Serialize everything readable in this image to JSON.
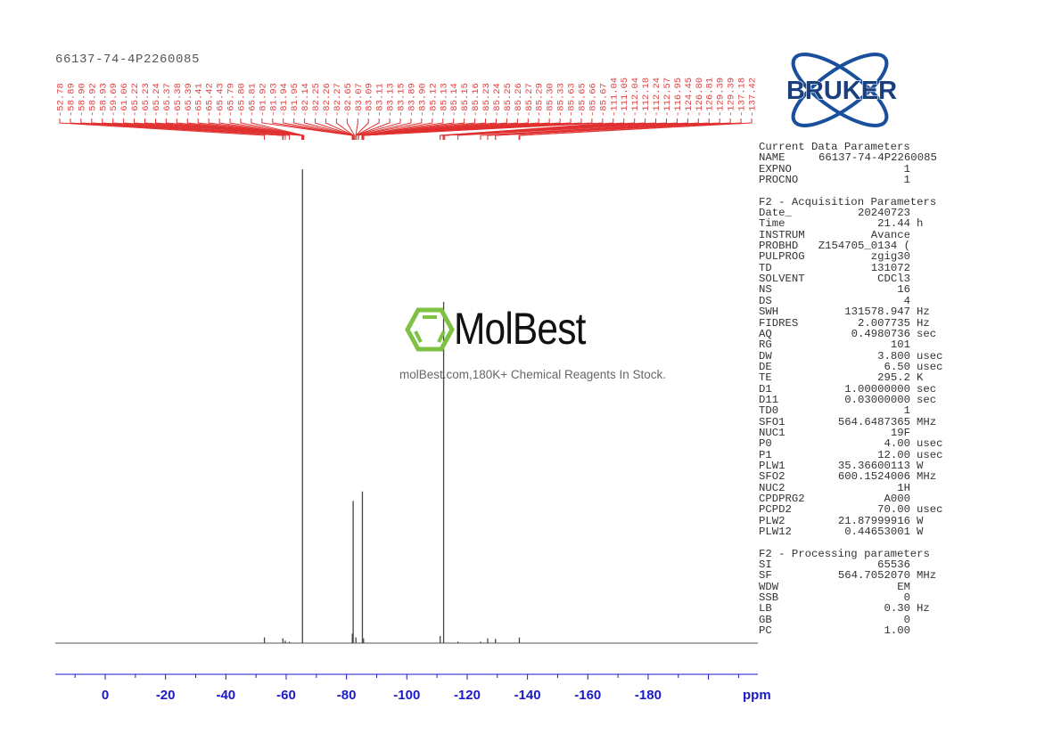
{
  "header": {
    "sample_name": "66137-74-4P2260085"
  },
  "logo": {
    "text": "BRUKER",
    "color": "#1a4f9c"
  },
  "watermark": {
    "name": "MolBest",
    "tagline": "molBest.com,180K+ Chemical Reagents In Stock.",
    "hex_color": "#7dc242"
  },
  "chart_data": {
    "type": "line",
    "title": "",
    "xlabel": "ppm",
    "ylabel": "",
    "xlim": [
      16.5,
      -216
    ],
    "x_reversed": true,
    "grid": false,
    "x_ticks": [
      0,
      -20,
      -40,
      -60,
      -80,
      -100,
      -120,
      -140,
      -160,
      -180
    ],
    "peak_label_color": "#e03030",
    "axis_color": "#1a1acc",
    "peak_labels": [
      "-52.78",
      "-58.89",
      "-58.90",
      "-58.92",
      "-58.93",
      "-59.69",
      "-61.06",
      "-65.22",
      "-65.23",
      "-65.24",
      "-65.37",
      "-65.38",
      "-65.39",
      "-65.41",
      "-65.42",
      "-65.43",
      "-65.79",
      "-65.80",
      "-65.81",
      "-81.92",
      "-81.93",
      "-81.94",
      "-81.95",
      "-82.14",
      "-82.25",
      "-82.26",
      "-82.27",
      "-82.65",
      "-83.07",
      "-83.09",
      "-83.11",
      "-83.13",
      "-83.15",
      "-83.89",
      "-83.90",
      "-85.12",
      "-85.13",
      "-85.14",
      "-85.15",
      "-85.16",
      "-85.23",
      "-85.24",
      "-85.25",
      "-85.26",
      "-85.27",
      "-85.29",
      "-85.30",
      "-85.33",
      "-85.63",
      "-85.65",
      "-85.66",
      "-85.67",
      "-111.04",
      "-111.05",
      "-112.04",
      "-112.18",
      "-112.24",
      "-112.57",
      "-116.95",
      "-124.45",
      "-126.80",
      "-126.81",
      "-129.39",
      "-129.39",
      "-137.18",
      "-137.42"
    ],
    "peaks": [
      {
        "ppm": -52.78,
        "intensity": 1.2
      },
      {
        "ppm": -58.9,
        "intensity": 1.0
      },
      {
        "ppm": -59.69,
        "intensity": 0.5
      },
      {
        "ppm": -61.06,
        "intensity": 0.3
      },
      {
        "ppm": -65.4,
        "intensity": 100
      },
      {
        "ppm": -81.93,
        "intensity": 2
      },
      {
        "ppm": -82.2,
        "intensity": 30
      },
      {
        "ppm": -83.1,
        "intensity": 1.2
      },
      {
        "ppm": -85.27,
        "intensity": 32
      },
      {
        "ppm": -85.65,
        "intensity": 1
      },
      {
        "ppm": -111.05,
        "intensity": 1.5
      },
      {
        "ppm": -112.2,
        "intensity": 72
      },
      {
        "ppm": -116.95,
        "intensity": 0.3
      },
      {
        "ppm": -124.45,
        "intensity": 0.3
      },
      {
        "ppm": -126.8,
        "intensity": 1.0
      },
      {
        "ppm": -129.39,
        "intensity": 0.9
      },
      {
        "ppm": -137.3,
        "intensity": 1.2
      }
    ]
  },
  "parameters": [
    {
      "heading": "Current Data Parameters",
      "rows": [
        [
          "NAME",
          "66137-74-4P2260085",
          ""
        ],
        [
          "EXPNO",
          "1",
          ""
        ],
        [
          "PROCNO",
          "1",
          ""
        ]
      ]
    },
    {
      "heading": "F2 - Acquisition Parameters",
      "rows": [
        [
          "Date_",
          "20240723",
          ""
        ],
        [
          "Time",
          "21.44",
          "h"
        ],
        [
          "INSTRUM",
          "Avance",
          ""
        ],
        [
          "PROBHD",
          "Z154705_0134 (",
          ""
        ],
        [
          "PULPROG",
          "zgig30",
          ""
        ],
        [
          "TD",
          "131072",
          ""
        ],
        [
          "SOLVENT",
          "CDCl3",
          ""
        ],
        [
          "NS",
          "16",
          ""
        ],
        [
          "DS",
          "4",
          ""
        ],
        [
          "SWH",
          "131578.947",
          "Hz"
        ],
        [
          "FIDRES",
          "2.007735",
          "Hz"
        ],
        [
          "AQ",
          "0.4980736",
          "sec"
        ],
        [
          "RG",
          "101",
          ""
        ],
        [
          "DW",
          "3.800",
          "usec"
        ],
        [
          "DE",
          "6.50",
          "usec"
        ],
        [
          "TE",
          "295.2",
          "K"
        ],
        [
          "D1",
          "1.00000000",
          "sec"
        ],
        [
          "D11",
          "0.03000000",
          "sec"
        ],
        [
          "TD0",
          "1",
          ""
        ],
        [
          "SFO1",
          "564.6487365",
          "MHz"
        ],
        [
          "NUC1",
          "19F",
          ""
        ],
        [
          "P0",
          "4.00",
          "usec"
        ],
        [
          "P1",
          "12.00",
          "usec"
        ],
        [
          "PLW1",
          "35.36600113",
          "W"
        ],
        [
          "SFO2",
          "600.1524006",
          "MHz"
        ],
        [
          "NUC2",
          "1H",
          ""
        ],
        [
          "CPDPRG2",
          "A000",
          ""
        ],
        [
          "PCPD2",
          "70.00",
          "usec"
        ],
        [
          "PLW2",
          "21.87999916",
          "W"
        ],
        [
          "PLW12",
          "0.44653001",
          "W"
        ]
      ]
    },
    {
      "heading": "F2 - Processing parameters",
      "rows": [
        [
          "SI",
          "65536",
          ""
        ],
        [
          "SF",
          "564.7052070",
          "MHz"
        ],
        [
          "WDW",
          "EM",
          ""
        ],
        [
          "SSB",
          "0",
          ""
        ],
        [
          "LB",
          "0.30",
          "Hz"
        ],
        [
          "GB",
          "0",
          ""
        ],
        [
          "PC",
          "1.00",
          ""
        ]
      ]
    }
  ]
}
